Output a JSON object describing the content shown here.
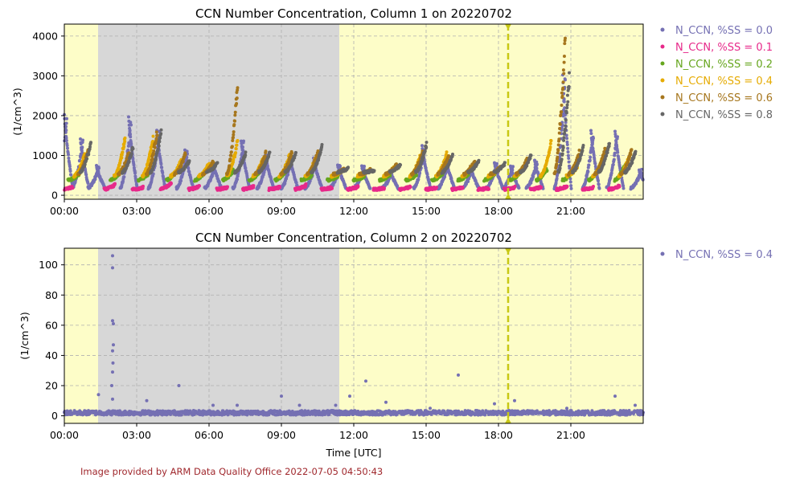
{
  "footer": "Image provided by ARM Data Quality Office 2022-07-05 04:50:43",
  "colors": {
    "day_background": "#fdfdc8",
    "night_background": "#d7d7d7",
    "marker_line": "#c8c814",
    "grid": "#b0b0b0"
  },
  "chart_data": [
    {
      "type": "scatter",
      "title": "CCN Number Concentration, Column 1 on 20220702",
      "xlabel": "",
      "ylabel": "(1/cm^3)",
      "xlim": [
        "00:00",
        "24:00"
      ],
      "ylim": [
        -100,
        4300
      ],
      "grid": true,
      "legend_position": "outside-right",
      "x_ticks": [
        "00:00",
        "03:00",
        "06:00",
        "09:00",
        "12:00",
        "15:00",
        "18:00",
        "21:00"
      ],
      "y_ticks": [
        0,
        1000,
        2000,
        3000,
        4000
      ],
      "night_shading": [
        "01:24",
        "11:24"
      ],
      "vertical_marker": "18:24",
      "series": [
        {
          "name": "N_CCN, %SS = 0.0",
          "color": "#7570b3",
          "x": [
            "00:00",
            "00:40",
            "01:20",
            "02:40",
            "03:50",
            "05:00",
            "06:10",
            "07:20",
            "08:20",
            "09:20",
            "10:20",
            "11:20",
            "12:20",
            "13:30",
            "14:50",
            "15:50",
            "16:50",
            "17:50",
            "18:30",
            "19:30",
            "20:40",
            "21:50",
            "22:50",
            "23:50"
          ],
          "y": [
            2000,
            1400,
            700,
            1950,
            1600,
            1100,
            800,
            1350,
            1000,
            1000,
            900,
            750,
            700,
            600,
            1200,
            850,
            700,
            800,
            700,
            850,
            3000,
            1600,
            1600,
            600
          ]
        },
        {
          "name": "N_CCN, %SS = 0.1",
          "color": "#e7298a",
          "x": [
            "00:15",
            "02:00",
            "03:10",
            "04:20",
            "05:30",
            "06:40",
            "07:45",
            "08:50",
            "09:55",
            "11:00",
            "12:05",
            "13:10",
            "14:15",
            "15:20",
            "16:25",
            "17:30",
            "18:35",
            "19:40",
            "20:45",
            "21:50",
            "22:55"
          ],
          "y": [
            180,
            240,
            170,
            300,
            200,
            170,
            200,
            180,
            230,
            160,
            190,
            150,
            180,
            160,
            170,
            150,
            170,
            180,
            200,
            170,
            220
          ]
        },
        {
          "name": "N_CCN, %SS = 0.2",
          "color": "#66a61e",
          "x": [
            "00:30",
            "02:15",
            "03:25",
            "04:35",
            "05:45",
            "06:55",
            "08:00",
            "09:05",
            "10:10",
            "11:15",
            "12:20",
            "13:25",
            "14:30",
            "15:35",
            "16:40",
            "17:45",
            "18:50",
            "19:55",
            "21:00",
            "22:05",
            "23:10"
          ],
          "y": [
            500,
            600,
            550,
            650,
            600,
            620,
            560,
            600,
            480,
            450,
            450,
            500,
            500,
            520,
            520,
            540,
            600,
            650,
            600,
            700,
            780
          ]
        },
        {
          "name": "N_CCN, %SS = 0.4",
          "color": "#e6ab02",
          "x": [
            "00:45",
            "02:25",
            "03:35",
            "04:45",
            "05:55",
            "07:05",
            "08:10",
            "09:15",
            "10:20",
            "11:25",
            "12:30",
            "13:35",
            "14:40",
            "15:45",
            "16:50",
            "17:55",
            "19:00",
            "20:05",
            "21:10",
            "22:15",
            "23:20"
          ],
          "y": [
            1050,
            1450,
            1500,
            900,
            800,
            1400,
            1000,
            1050,
            950,
            600,
            600,
            700,
            1000,
            1050,
            780,
            650,
            750,
            1350,
            700,
            1000,
            1000
          ]
        },
        {
          "name": "N_CCN, %SS = 0.6",
          "color": "#a6761d",
          "x": [
            "00:55",
            "02:35",
            "03:45",
            "04:55",
            "06:05",
            "07:05",
            "08:15",
            "09:20",
            "10:25",
            "11:30",
            "12:35",
            "13:40",
            "14:45",
            "15:50",
            "16:55",
            "18:00",
            "19:05",
            "20:40",
            "21:15",
            "22:20",
            "23:25"
          ],
          "y": [
            1200,
            1100,
            1650,
            1050,
            850,
            2900,
            1050,
            1100,
            1100,
            650,
            620,
            750,
            1100,
            1000,
            850,
            700,
            900,
            4200,
            1100,
            1200,
            1150
          ]
        },
        {
          "name": "N_CCN, %SS = 0.8",
          "color": "#666666",
          "x": [
            "01:00",
            "02:45",
            "03:55",
            "05:05",
            "06:15",
            "07:25",
            "08:25",
            "09:30",
            "10:35",
            "11:40",
            "12:45",
            "13:50",
            "14:55",
            "16:00",
            "17:05",
            "18:10",
            "19:15",
            "20:50",
            "21:25",
            "22:30",
            "23:35"
          ],
          "y": [
            1350,
            1200,
            1700,
            850,
            800,
            1050,
            1100,
            1100,
            1250,
            650,
            600,
            750,
            1300,
            1000,
            850,
            800,
            1000,
            3100,
            1250,
            1350,
            1100
          ]
        }
      ]
    },
    {
      "type": "scatter",
      "title": "CCN Number Concentration, Column 2 on 20220702",
      "xlabel": "Time [UTC]",
      "ylabel": "(1/cm^3)",
      "xlim": [
        "00:00",
        "24:00"
      ],
      "ylim": [
        -5,
        111
      ],
      "grid": true,
      "legend_position": "outside-right",
      "x_ticks": [
        "00:00",
        "03:00",
        "06:00",
        "09:00",
        "12:00",
        "15:00",
        "18:00",
        "21:00"
      ],
      "y_ticks": [
        0,
        20,
        40,
        60,
        80,
        100
      ],
      "night_shading": [
        "01:24",
        "11:24"
      ],
      "vertical_marker": "18:24",
      "series": [
        {
          "name": "N_CCN, %SS = 0.4",
          "color": "#7570b3",
          "baseline": 2,
          "x": [
            "01:25",
            "02:00",
            "02:00",
            "02:00",
            "02:02",
            "02:02",
            "02:00",
            "02:01",
            "02:00",
            "01:58",
            "02:00",
            "03:25",
            "04:45",
            "06:10",
            "07:10",
            "09:00",
            "09:45",
            "11:15",
            "11:50",
            "12:30",
            "13:20",
            "15:10",
            "16:20",
            "17:50",
            "18:40",
            "20:50",
            "22:50",
            "23:40"
          ],
          "y": [
            14,
            106,
            98,
            63,
            61,
            47,
            43,
            35,
            29,
            20,
            11,
            10,
            20,
            7,
            7,
            13,
            7,
            7,
            13,
            23,
            9,
            5,
            27,
            8,
            10,
            5,
            13,
            7
          ]
        }
      ]
    }
  ]
}
